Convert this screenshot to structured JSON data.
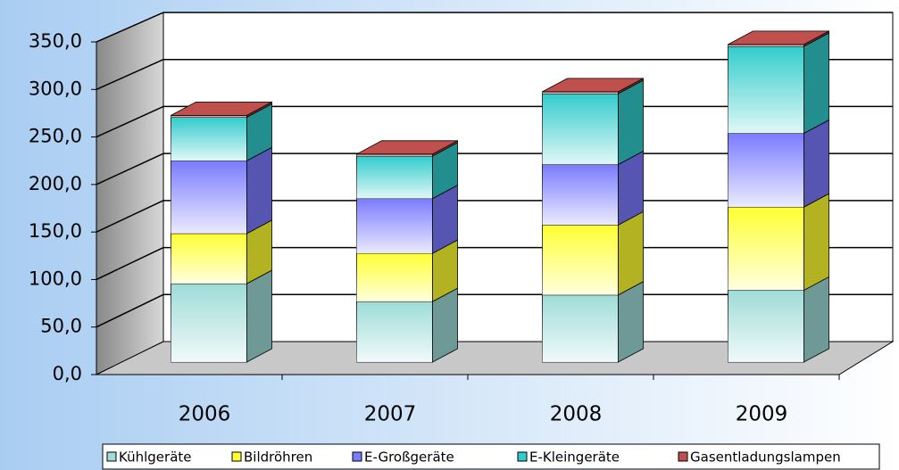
{
  "chart_data": {
    "type": "bar3d_stacked",
    "categories": [
      "2006",
      "2007",
      "2008",
      "2009"
    ],
    "series": [
      {
        "name": "Kühlgeräte",
        "color": "#9fdcd8",
        "values": [
          83,
          64,
          71,
          76
        ]
      },
      {
        "name": "Bildröhren",
        "color": "#ffff33",
        "values": [
          53,
          51,
          74,
          88
        ]
      },
      {
        "name": "E-Großgeräte",
        "color": "#7b7bff",
        "values": [
          77,
          58,
          64,
          78
        ]
      },
      {
        "name": "E-Kleingeräte",
        "color": "#33cccc",
        "values": [
          46,
          45,
          75,
          92
        ]
      },
      {
        "name": "Gasentladungslampen",
        "color": "#c0504d",
        "values": [
          2,
          2,
          2,
          2
        ]
      }
    ],
    "ylim": [
      0,
      350
    ],
    "yticks": [
      {
        "value": 0,
        "label": "0,0"
      },
      {
        "value": 50,
        "label": "50,0"
      },
      {
        "value": 100,
        "label": "100,0"
      },
      {
        "value": 150,
        "label": "150,0"
      },
      {
        "value": 200,
        "label": "200,0"
      },
      {
        "value": 250,
        "label": "250,0"
      },
      {
        "value": 300,
        "label": "300,0"
      },
      {
        "value": 350,
        "label": "350,0"
      }
    ],
    "grid": true
  }
}
